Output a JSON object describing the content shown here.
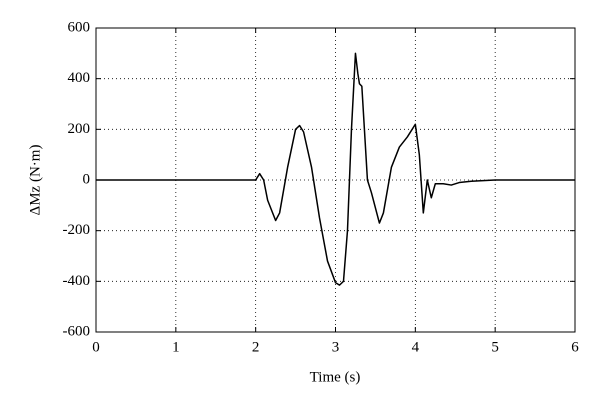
{
  "chart_data": {
    "type": "line",
    "x_label": "Time (s)",
    "y_label": "ΔMz (N·m)",
    "x": [
      0,
      0.5,
      1,
      1.5,
      2.0,
      2.05,
      2.1,
      2.15,
      2.25,
      2.3,
      2.4,
      2.5,
      2.55,
      2.6,
      2.7,
      2.8,
      2.9,
      3.0,
      3.05,
      3.1,
      3.15,
      3.2,
      3.25,
      3.28,
      3.3,
      3.33,
      3.4,
      3.45,
      3.55,
      3.6,
      3.7,
      3.8,
      3.9,
      4.0,
      4.05,
      4.1,
      4.15,
      4.2,
      4.25,
      4.35,
      4.45,
      4.55,
      4.7,
      5.0,
      6.0
    ],
    "series": [
      {
        "color": "#000000",
        "values": [
          0,
          0,
          0,
          0,
          0,
          25,
          0,
          -80,
          -160,
          -130,
          50,
          200,
          215,
          190,
          50,
          -150,
          -320,
          -405,
          -415,
          -400,
          -200,
          200,
          500,
          420,
          380,
          370,
          0,
          -50,
          -170,
          -130,
          50,
          130,
          170,
          220,
          100,
          -130,
          0,
          -70,
          -15,
          -15,
          -20,
          -10,
          -5,
          0,
          0
        ]
      }
    ],
    "xlim": [
      0,
      6
    ],
    "ylim": [
      -600,
      600
    ],
    "xticks": [
      0,
      1,
      2,
      3,
      4,
      5,
      6
    ],
    "yticks": [
      -600,
      -400,
      -200,
      0,
      200,
      400,
      600
    ],
    "grid": true
  }
}
